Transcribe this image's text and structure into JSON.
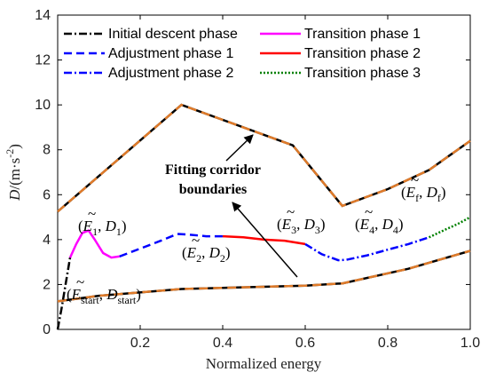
{
  "chart_data": {
    "type": "line",
    "title": "",
    "xlabel": "Normalized energy",
    "ylabel": "D/(m·s⁻²)",
    "ylabel_parts": {
      "main": "D",
      "unit": "/(m·s",
      "exp": "-2",
      "close": ")"
    },
    "xlim": [
      0,
      1
    ],
    "ylim": [
      0,
      14
    ],
    "xticks": [
      0.2,
      0.4,
      0.6,
      0.8,
      1.0
    ],
    "xtick_labels": [
      "0.2",
      "0.4",
      "0.6",
      "0.8",
      "1.0"
    ],
    "yticks": [
      0,
      2,
      4,
      6,
      8,
      10,
      12,
      14
    ],
    "ytick_labels": [
      "0",
      "2",
      "4",
      "6",
      "8",
      "10",
      "12",
      "14"
    ],
    "grid": false,
    "legend": {
      "placement": "top",
      "entries": [
        {
          "label": "Initial descent phase",
          "color": "#000000",
          "style": "dashdot"
        },
        {
          "label": "Transition phase 1",
          "color": "#ff00ff",
          "style": "solid"
        },
        {
          "label": "Adjustment phase 1",
          "color": "#0000ff",
          "style": "dashed"
        },
        {
          "label": "Transition phase 2",
          "color": "#ff0000",
          "style": "solid"
        },
        {
          "label": "Adjustment phase 2",
          "color": "#0000ff",
          "style": "dashdot"
        },
        {
          "label": "Transition phase 3",
          "color": "#008000",
          "style": "dotted"
        }
      ]
    },
    "corridor": {
      "upper_x": [
        0,
        0.3,
        0.57,
        0.69,
        0.8,
        0.9,
        1.0
      ],
      "upper_y": [
        5.25,
        10.0,
        8.2,
        5.5,
        6.25,
        7.1,
        8.4
      ],
      "lower_x": [
        0,
        0.1,
        0.3,
        0.6,
        0.69,
        0.85,
        1.0
      ],
      "lower_y": [
        1.25,
        1.5,
        1.8,
        1.95,
        2.05,
        2.7,
        3.5
      ],
      "fit_color": "#e07b2a",
      "bound_color": "#000000"
    },
    "series": [
      {
        "name": "Initial descent phase",
        "color": "#000000",
        "style": "dashdot",
        "x": [
          0.0,
          0.01,
          0.02,
          0.03
        ],
        "y": [
          0.0,
          1.0,
          2.1,
          3.2
        ]
      },
      {
        "name": "Transition phase 1",
        "color": "#ff00ff",
        "style": "solid",
        "x": [
          0.03,
          0.045,
          0.06,
          0.075,
          0.09,
          0.11,
          0.13,
          0.15
        ],
        "y": [
          3.2,
          3.8,
          4.3,
          4.4,
          4.0,
          3.4,
          3.2,
          3.25
        ]
      },
      {
        "name": "Adjustment phase 1",
        "color": "#0000ff",
        "style": "dashed",
        "x": [
          0.15,
          0.2,
          0.25,
          0.29,
          0.32,
          0.36,
          0.4
        ],
        "y": [
          3.25,
          3.6,
          3.95,
          4.25,
          4.22,
          4.15,
          4.15
        ]
      },
      {
        "name": "Transition phase 2",
        "color": "#ff0000",
        "style": "solid",
        "x": [
          0.4,
          0.45,
          0.5,
          0.55,
          0.6
        ],
        "y": [
          4.15,
          4.1,
          4.0,
          3.95,
          3.8
        ]
      },
      {
        "name": "Adjustment phase 2",
        "color": "#0000ff",
        "style": "dashdot",
        "x": [
          0.6,
          0.64,
          0.68,
          0.7,
          0.75,
          0.8,
          0.85,
          0.9
        ],
        "y": [
          3.8,
          3.35,
          3.08,
          3.1,
          3.3,
          3.55,
          3.8,
          4.1
        ]
      },
      {
        "name": "Transition phase 3",
        "color": "#008000",
        "style": "dotted",
        "x": [
          0.9,
          0.94,
          0.97,
          1.0
        ],
        "y": [
          4.1,
          4.45,
          4.7,
          5.0
        ]
      }
    ],
    "annotations": {
      "corridor_label_line1": "Fitting corridor",
      "corridor_label_line2": "boundaries",
      "points": [
        {
          "id": "start",
          "sym": "E",
          "sub": "start",
          "dsub": "start"
        },
        {
          "id": "p1",
          "sym": "E",
          "sub": "1",
          "dsub": "1"
        },
        {
          "id": "p2",
          "sym": "E",
          "sub": "2",
          "dsub": "2"
        },
        {
          "id": "p3",
          "sym": "E",
          "sub": "3",
          "dsub": "3"
        },
        {
          "id": "p4",
          "sym": "E",
          "sub": "4",
          "dsub": "4"
        },
        {
          "id": "pf",
          "sym": "E",
          "sub": "f",
          "dsub": "f"
        }
      ]
    }
  }
}
